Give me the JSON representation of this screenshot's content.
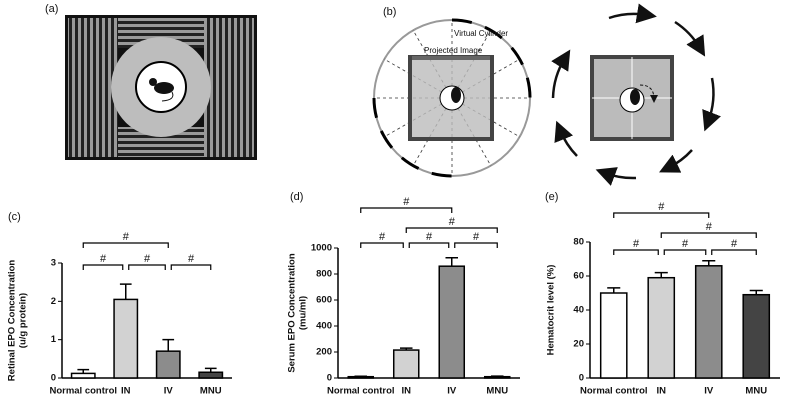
{
  "figure": {
    "panel_labels": [
      "(a)",
      "(b)",
      "(c)",
      "(d)",
      "(e)"
    ],
    "annotations": [
      "Virtual Cylinder",
      "Projected Image"
    ]
  },
  "chart_data": [
    {
      "type": "bar",
      "y_label": "Retinal EPO Concentration",
      "y_label_unit": "(u/g protein)",
      "categories": [
        "Normal control",
        "IN",
        "IV",
        "MNU"
      ],
      "values": [
        0.12,
        2.05,
        0.7,
        0.15
      ],
      "errors": [
        0.1,
        0.4,
        0.3,
        0.1
      ],
      "colors": [
        "#ffffff",
        "#d2d2d2",
        "#8c8c8c",
        "#444444"
      ],
      "ylim": [
        0,
        3
      ],
      "yticks": [
        0,
        1,
        2,
        3
      ],
      "significance": [
        {
          "from": 0,
          "to": 1,
          "label": "#"
        },
        {
          "from": 1,
          "to": 2,
          "label": "#"
        },
        {
          "from": 2,
          "to": 3,
          "label": "#"
        },
        {
          "from": 0,
          "to": 2,
          "label": "#"
        }
      ]
    },
    {
      "type": "bar",
      "y_label": "Serum EPO Concentration",
      "y_label_unit": "(mu/ml)",
      "categories": [
        "Normal control",
        "IN",
        "IV",
        "MNU"
      ],
      "values": [
        10,
        215,
        860,
        10
      ],
      "errors": [
        3,
        15,
        65,
        4
      ],
      "colors": [
        "#ffffff",
        "#d2d2d2",
        "#8c8c8c",
        "#444444"
      ],
      "ylim": [
        0,
        1000
      ],
      "yticks": [
        0,
        200,
        400,
        600,
        800,
        1000
      ],
      "significance": [
        {
          "from": 0,
          "to": 1,
          "label": "#"
        },
        {
          "from": 1,
          "to": 2,
          "label": "#"
        },
        {
          "from": 2,
          "to": 3,
          "label": "#"
        },
        {
          "from": 1,
          "to": 3,
          "label": "#"
        },
        {
          "from": 0,
          "to": 2,
          "label": "#"
        }
      ]
    },
    {
      "type": "bar",
      "y_label": "Hematocrit level (%)",
      "categories": [
        "Normal control",
        "IN",
        "IV",
        "MNU"
      ],
      "values": [
        50,
        59,
        66,
        49
      ],
      "errors": [
        3,
        3,
        3,
        2.5
      ],
      "colors": [
        "#ffffff",
        "#d2d2d2",
        "#8c8c8c",
        "#444444"
      ],
      "ylim": [
        0,
        80
      ],
      "yticks": [
        0,
        20,
        40,
        60,
        80
      ],
      "significance": [
        {
          "from": 0,
          "to": 1,
          "label": "#"
        },
        {
          "from": 1,
          "to": 2,
          "label": "#"
        },
        {
          "from": 2,
          "to": 3,
          "label": "#"
        },
        {
          "from": 1,
          "to": 3,
          "label": "#"
        },
        {
          "from": 0,
          "to": 2,
          "label": "#"
        }
      ]
    }
  ]
}
